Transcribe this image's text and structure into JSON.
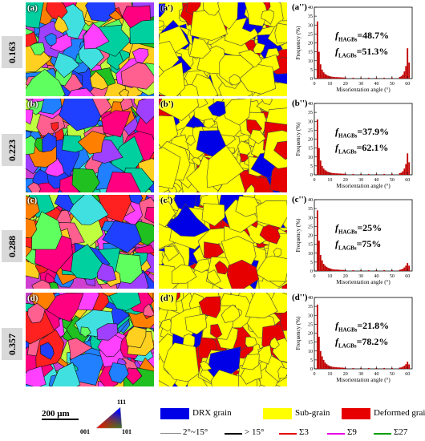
{
  "rows": [
    {
      "strain": "0.163",
      "ebsd_label": "(a)",
      "map_label": "(a')",
      "chart_label": "(a'')"
    },
    {
      "strain": "0.223",
      "ebsd_label": "(b)",
      "map_label": "(b')",
      "chart_label": "(b'')"
    },
    {
      "strain": "0.288",
      "ebsd_label": "(c)",
      "map_label": "(c')",
      "chart_label": "(c'')"
    },
    {
      "strain": "0.357",
      "ebsd_label": "(d)",
      "map_label": "(d')",
      "chart_label": "(d'')"
    }
  ],
  "chart_common": {
    "ylabel": "Frequency (%)",
    "xlabel": "Misorientation angle (°)",
    "x_ticks": [
      0,
      10,
      20,
      30,
      40,
      50,
      60
    ],
    "y_ticks": [
      0,
      5,
      10,
      15,
      20,
      25,
      30,
      35,
      40
    ],
    "ylim": [
      0,
      40
    ],
    "xlim": [
      0,
      63
    ],
    "bar_color": "#c00000"
  },
  "chart_data": [
    {
      "type": "bar",
      "title": "",
      "xlabel": "Misorientation angle (°)",
      "ylabel": "Frequency (%)",
      "annotations": [
        "fHAGBs=48.7%",
        "fLAGBs=51.3%"
      ],
      "x": [
        2,
        3,
        4,
        5,
        6,
        7,
        8,
        9,
        10,
        11,
        12,
        13,
        14,
        15,
        16,
        17,
        18,
        19,
        20,
        25,
        30,
        35,
        40,
        45,
        50,
        55,
        56,
        57,
        58,
        59,
        60,
        61
      ],
      "values": [
        32,
        15,
        8,
        5,
        3.5,
        2.6,
        2,
        1.6,
        1.3,
        1.1,
        1,
        0.9,
        0.8,
        0.8,
        0.7,
        0.7,
        0.6,
        0.6,
        0.6,
        0.5,
        0.5,
        0.5,
        0.5,
        0.5,
        0.6,
        0.9,
        1.3,
        2.2,
        4,
        7,
        17,
        9
      ]
    },
    {
      "type": "bar",
      "title": "",
      "xlabel": "Misorientation angle (°)",
      "ylabel": "Frequency (%)",
      "annotations": [
        "fHAGBs=37.9%",
        "fLAGBs=62.1%"
      ],
      "x": [
        2,
        3,
        4,
        5,
        6,
        7,
        8,
        9,
        10,
        11,
        12,
        13,
        14,
        15,
        16,
        17,
        18,
        19,
        20,
        25,
        30,
        35,
        40,
        45,
        50,
        55,
        56,
        57,
        58,
        59,
        60,
        61
      ],
      "values": [
        31,
        15,
        8,
        5,
        3.5,
        2.6,
        2,
        1.6,
        1.3,
        1.1,
        1,
        0.9,
        0.8,
        0.8,
        0.7,
        0.7,
        0.6,
        0.6,
        0.6,
        0.5,
        0.5,
        0.5,
        0.5,
        0.5,
        0.6,
        0.9,
        1.2,
        2,
        3.5,
        6,
        12,
        7
      ]
    },
    {
      "type": "bar",
      "title": "",
      "xlabel": "Misorientation angle (°)",
      "ylabel": "Frequency (%)",
      "annotations": [
        "fHAGBs=25%",
        "fLAGBs=75%"
      ],
      "x": [
        2,
        3,
        4,
        5,
        6,
        7,
        8,
        9,
        10,
        11,
        12,
        13,
        14,
        15,
        16,
        17,
        18,
        19,
        20,
        25,
        30,
        35,
        40,
        45,
        50,
        55,
        56,
        57,
        58,
        59,
        60,
        61
      ],
      "values": [
        34,
        17,
        9,
        6,
        4,
        3,
        2.3,
        1.8,
        1.5,
        1.2,
        1,
        0.9,
        0.8,
        0.8,
        0.7,
        0.6,
        0.6,
        0.6,
        0.5,
        0.5,
        0.5,
        0.5,
        0.5,
        0.5,
        0.5,
        0.7,
        0.9,
        1.3,
        2,
        3,
        4.5,
        3
      ]
    },
    {
      "type": "bar",
      "title": "",
      "xlabel": "Misorientation angle (°)",
      "ylabel": "Frequency (%)",
      "annotations": [
        "fHAGBs=21.8%",
        "fLAGBs=78.2%"
      ],
      "x": [
        2,
        3,
        4,
        5,
        6,
        7,
        8,
        9,
        10,
        11,
        12,
        13,
        14,
        15,
        16,
        17,
        18,
        19,
        20,
        25,
        30,
        35,
        40,
        45,
        50,
        55,
        56,
        57,
        58,
        59,
        60,
        61
      ],
      "values": [
        36,
        18,
        10,
        7,
        5,
        3.5,
        2.6,
        2,
        1.6,
        1.3,
        1.1,
        1,
        0.9,
        0.8,
        0.8,
        0.7,
        0.7,
        0.6,
        0.6,
        0.5,
        0.5,
        0.5,
        0.5,
        0.5,
        0.5,
        0.7,
        0.8,
        1.2,
        1.8,
        2.6,
        4,
        2.5
      ]
    }
  ],
  "footer": {
    "scale_bar": "200 μm",
    "ipf": {
      "top": "111",
      "left": "001",
      "right": "101"
    },
    "legend_fill": [
      {
        "label": "DRX grain",
        "color": "#0000e6"
      },
      {
        "label": "Sub-grain",
        "color": "#ffff00"
      },
      {
        "label": "Deformed  grain",
        "color": "#e60000"
      }
    ],
    "legend_lines": [
      {
        "label": "2°~15°",
        "color": "#8c8c8c"
      },
      {
        "label": "> 15°",
        "color": "#000000"
      },
      {
        "label": "Σ3",
        "color": "#e60000"
      },
      {
        "label": "Σ9",
        "color": "#e600e6"
      },
      {
        "label": "Σ27",
        "color": "#00a000"
      }
    ]
  }
}
